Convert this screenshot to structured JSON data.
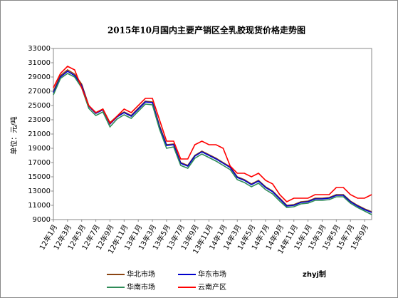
{
  "chart_data": {
    "type": "line",
    "title": "2015年10月国内主要产销区全乳胶现货价格走势图",
    "y_label": "单位：元/吨",
    "credit": "zhyj制",
    "categories": [
      "12年1月",
      null,
      "12年3月",
      null,
      "12年5月",
      null,
      "12年7月",
      null,
      "12年9月",
      null,
      "12年11月",
      null,
      "13年1月",
      null,
      "13年3月",
      null,
      "13年5月",
      null,
      "13年7月",
      null,
      "13年9月",
      null,
      "13年11月",
      null,
      "14年1月",
      null,
      "14年3月",
      null,
      "14年5月",
      null,
      "14年7月",
      null,
      "14年9月",
      null,
      "14年11月",
      null,
      "15年1月",
      null,
      "15年3月",
      null,
      "15年5月",
      null,
      "15年7月",
      null,
      "15年9月",
      null
    ],
    "series": [
      {
        "name": "华北市场",
        "color": "#8b4513",
        "values": [
          27000,
          29200,
          30000,
          29400,
          28000,
          25000,
          24000,
          24500,
          22600,
          23500,
          24100,
          23600,
          24600,
          25600,
          25500,
          22200,
          19500,
          19600,
          17000,
          16600,
          18000,
          18600,
          18100,
          17600,
          17000,
          16400,
          15000,
          14600,
          14000,
          14500,
          13600,
          13000,
          12000,
          11000,
          11100,
          11500,
          11600,
          12000,
          12000,
          12100,
          12500,
          12500,
          11600,
          11000,
          10500,
          10100
        ]
      },
      {
        "name": "华东市场",
        "color": "#0000cc",
        "values": [
          26800,
          29000,
          29800,
          29200,
          27800,
          24900,
          23900,
          24400,
          22400,
          23400,
          24000,
          23500,
          24500,
          25500,
          25400,
          22000,
          19400,
          19500,
          16900,
          16500,
          17900,
          18500,
          18000,
          17500,
          16900,
          16300,
          14900,
          14500,
          13900,
          14400,
          13500,
          12900,
          11900,
          10900,
          11000,
          11400,
          11500,
          11900,
          11900,
          12000,
          12400,
          12400,
          11500,
          10900,
          10400,
          10000
        ]
      },
      {
        "name": "华南市场",
        "color": "#2e8b57",
        "values": [
          26500,
          28800,
          29500,
          29000,
          27500,
          24600,
          23600,
          24100,
          22000,
          23100,
          23700,
          23200,
          24200,
          25200,
          25100,
          21700,
          19000,
          19200,
          16600,
          16200,
          17600,
          18200,
          17700,
          17200,
          16600,
          16000,
          14600,
          14200,
          13600,
          14100,
          13200,
          12600,
          11600,
          10700,
          10800,
          11200,
          11300,
          11700,
          11700,
          11800,
          12200,
          12200,
          11300,
          10700,
          10200,
          9700
        ]
      },
      {
        "name": "云南产区",
        "color": "#ff0000",
        "values": [
          27500,
          29500,
          30500,
          30000,
          27500,
          25000,
          24000,
          24500,
          22500,
          23500,
          24500,
          24000,
          25000,
          26000,
          26000,
          23000,
          20000,
          20000,
          17500,
          17500,
          19500,
          20000,
          19500,
          19500,
          19000,
          16500,
          15500,
          15500,
          15000,
          15500,
          14500,
          14000,
          12500,
          11500,
          12000,
          12000,
          12000,
          12500,
          12500,
          12500,
          13500,
          13500,
          12500,
          12000,
          12000,
          12500
        ]
      }
    ],
    "ylim": [
      9000,
      33000
    ],
    "yticks": [
      9000,
      11000,
      13000,
      15000,
      17000,
      19000,
      21000,
      23000,
      25000,
      27000,
      29000,
      31000,
      33000
    ]
  }
}
